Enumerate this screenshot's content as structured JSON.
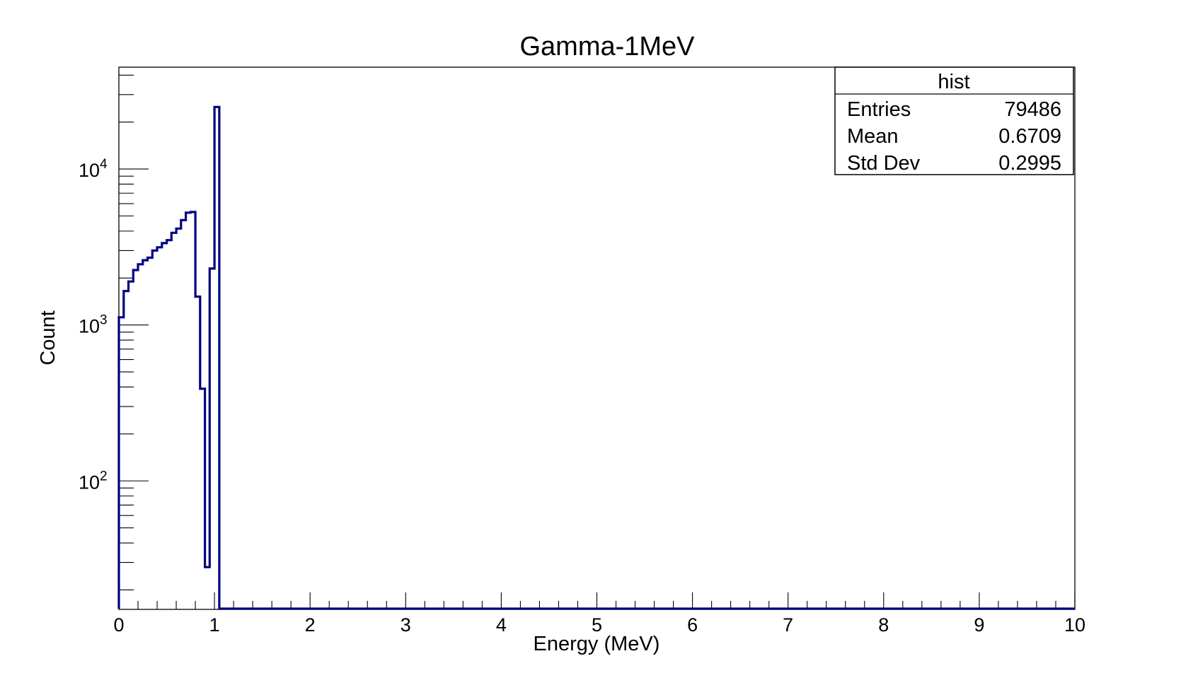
{
  "chart_data": {
    "type": "histogram",
    "title": "Gamma-1MeV",
    "xlabel": "Energy (MeV)",
    "ylabel": "Count",
    "xlim": [
      0,
      10
    ],
    "ylim": [
      15,
      45000
    ],
    "y_scale": "log",
    "grid": false,
    "line_color": "#00007f",
    "x_ticks": [
      "0",
      "1",
      "2",
      "3",
      "4",
      "5",
      "6",
      "7",
      "8",
      "9",
      "10"
    ],
    "y_ticks": [
      {
        "value": 100,
        "base": "10",
        "exp": "2"
      },
      {
        "value": 1000,
        "base": "10",
        "exp": "3"
      },
      {
        "value": 10000,
        "base": "10",
        "exp": "4"
      }
    ],
    "bin_width": 0.05,
    "bins": [
      {
        "x_low": 0.0,
        "count": 1120
      },
      {
        "x_low": 0.05,
        "count": 1650
      },
      {
        "x_low": 0.1,
        "count": 1900
      },
      {
        "x_low": 0.15,
        "count": 2250
      },
      {
        "x_low": 0.2,
        "count": 2450
      },
      {
        "x_low": 0.25,
        "count": 2600
      },
      {
        "x_low": 0.3,
        "count": 2700
      },
      {
        "x_low": 0.35,
        "count": 3000
      },
      {
        "x_low": 0.4,
        "count": 3150
      },
      {
        "x_low": 0.45,
        "count": 3350
      },
      {
        "x_low": 0.5,
        "count": 3500
      },
      {
        "x_low": 0.55,
        "count": 3900
      },
      {
        "x_low": 0.6,
        "count": 4150
      },
      {
        "x_low": 0.65,
        "count": 4700
      },
      {
        "x_low": 0.7,
        "count": 5250
      },
      {
        "x_low": 0.75,
        "count": 5300
      },
      {
        "x_low": 0.8,
        "count": 1520
      },
      {
        "x_low": 0.85,
        "count": 390
      },
      {
        "x_low": 0.9,
        "count": 28
      },
      {
        "x_low": 0.95,
        "count": 2300
      },
      {
        "x_low": 1.0,
        "count": 25000
      }
    ],
    "stats_box": {
      "title": "hist",
      "position": "top-right",
      "rows": [
        {
          "label": "Entries",
          "value": "79486"
        },
        {
          "label": "Mean",
          "value": "0.6709"
        },
        {
          "label": "Std Dev",
          "value": "0.2995"
        }
      ]
    }
  }
}
